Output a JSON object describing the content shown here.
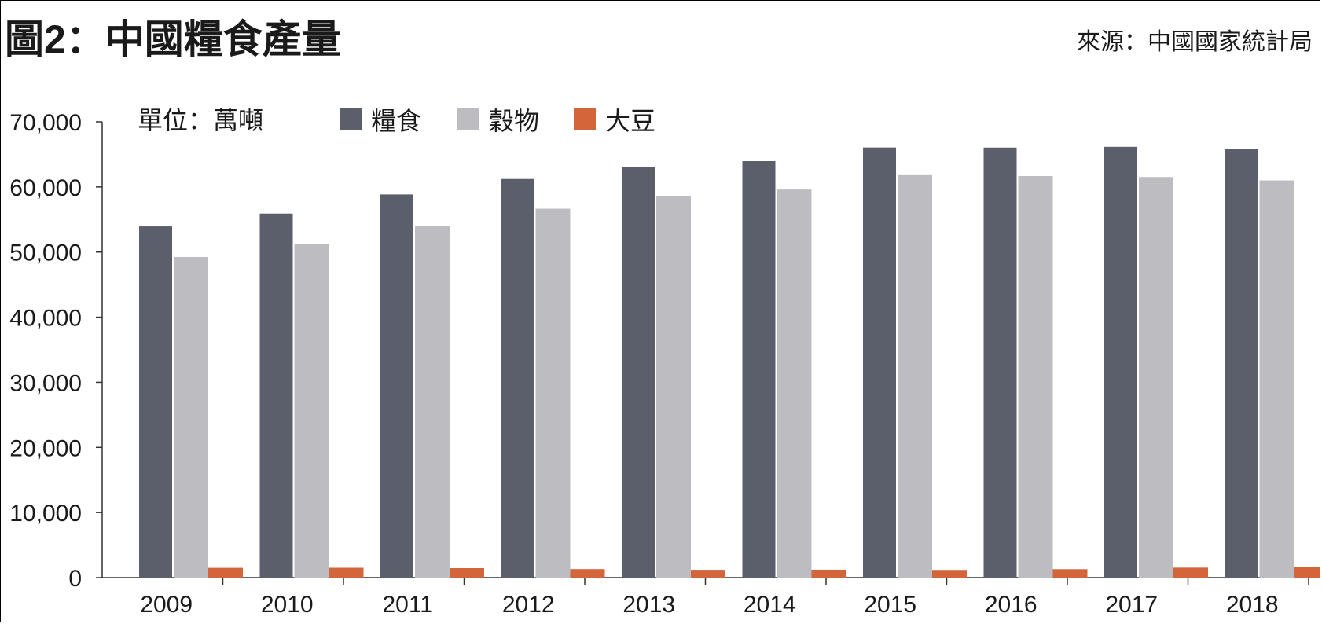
{
  "header": {
    "title": "圖2：中國糧食產量",
    "source": "來源：中國國家統計局"
  },
  "chart_data": {
    "type": "bar",
    "unit_label": "單位：萬噸",
    "categories": [
      "2009",
      "2010",
      "2011",
      "2012",
      "2013",
      "2014",
      "2015",
      "2016",
      "2017",
      "2018"
    ],
    "series": [
      {
        "name": "糧食",
        "color": "#5b5e6b",
        "values": [
          53941,
          55911,
          58849,
          61223,
          63048,
          63965,
          66060,
          66044,
          66161,
          65789
        ]
      },
      {
        "name": "穀物",
        "color": "#bcbcc1",
        "values": [
          49243,
          51197,
          54062,
          56659,
          58650,
          59602,
          61818,
          61667,
          61521,
          61004
        ]
      },
      {
        "name": "大豆",
        "color": "#d2663a",
        "values": [
          1498,
          1508,
          1449,
          1305,
          1195,
          1215,
          1179,
          1294,
          1528,
          1597
        ]
      }
    ],
    "y_ticks": [
      "0",
      "10,000",
      "20,000",
      "30,000",
      "40,000",
      "50,000",
      "60,000",
      "70,000"
    ],
    "ylim": [
      0,
      70000
    ],
    "grid": false,
    "legend_position": "top-center"
  }
}
